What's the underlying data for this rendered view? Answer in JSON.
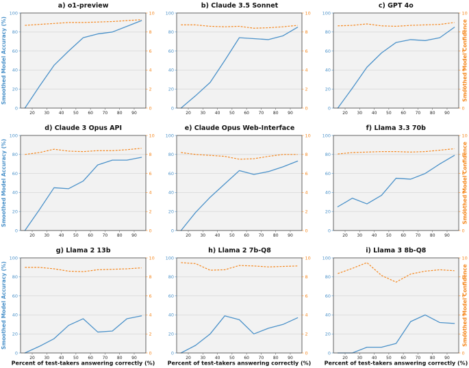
{
  "figure": {
    "description": "3x3 grid of line charts comparing smoothed model accuracy and confidence for nine language models"
  },
  "colors": {
    "accuracy": "#4a91c9",
    "confidence": "#f5861c",
    "plot_background": "#f2f2f2",
    "gridline": "#d8d8d8",
    "spine": "#3d3d3d",
    "tick_text": "#222222",
    "title_text": "#111111"
  },
  "chart_data": {
    "type": "line",
    "x": [
      15,
      25,
      35,
      45,
      55,
      65,
      75,
      85,
      95
    ],
    "xlabel": "Percent of test-takers answering correctly (%)",
    "ylabel_left": "Smoothed Model Accuracy (%)",
    "ylabel_right": "Smoothed Model Confidence",
    "xlim": [
      12,
      98
    ],
    "ylim_left": [
      0,
      100
    ],
    "ylim_right": [
      0,
      10
    ],
    "xticks": [
      20,
      30,
      40,
      50,
      60,
      70,
      80,
      90
    ],
    "yticks_left": [
      0,
      20,
      40,
      60,
      80,
      100
    ],
    "yticks_right": [
      0,
      2,
      4,
      6,
      8,
      10
    ],
    "grid": "horizontal",
    "legend": "none",
    "series_styles": {
      "accuracy": {
        "axis": "left",
        "style": "solid"
      },
      "confidence": {
        "axis": "right",
        "style": "dashed"
      }
    },
    "subplots": [
      {
        "id": "a",
        "title": "a) o1-preview",
        "row": 0,
        "col": 0,
        "accuracy": [
          0,
          23,
          45,
          60,
          74,
          78,
          80,
          86,
          92
        ],
        "confidence": [
          8.7,
          8.8,
          8.9,
          9.0,
          9.0,
          9.05,
          9.1,
          9.2,
          9.3
        ]
      },
      {
        "id": "b",
        "title": "b) Claude 3.5 Sonnet",
        "row": 0,
        "col": 1,
        "accuracy": [
          0,
          13,
          27,
          50,
          74,
          73,
          72,
          76,
          85
        ],
        "confidence": [
          8.75,
          8.75,
          8.6,
          8.55,
          8.6,
          8.4,
          8.45,
          8.55,
          8.7
        ]
      },
      {
        "id": "c",
        "title": "c) GPT 4o",
        "row": 0,
        "col": 2,
        "accuracy": [
          0,
          21,
          43,
          58,
          69,
          72,
          71,
          74,
          85
        ],
        "confidence": [
          8.65,
          8.7,
          8.85,
          8.65,
          8.6,
          8.7,
          8.75,
          8.8,
          9.0
        ]
      },
      {
        "id": "d",
        "title": "d) Claude 3 Opus API",
        "row": 1,
        "col": 0,
        "accuracy": [
          0,
          22,
          45,
          44,
          52,
          69,
          74,
          74,
          77
        ],
        "confidence": [
          8.0,
          8.2,
          8.55,
          8.35,
          8.3,
          8.4,
          8.4,
          8.5,
          8.65
        ]
      },
      {
        "id": "e",
        "title": "e) Claude Opus Web-Interface",
        "row": 1,
        "col": 1,
        "accuracy": [
          0,
          19,
          35,
          49,
          63,
          59,
          62,
          67,
          73
        ],
        "confidence": [
          8.2,
          8.0,
          7.9,
          7.8,
          7.5,
          7.55,
          7.8,
          8.0,
          8.0
        ]
      },
      {
        "id": "f",
        "title": "f) Llama 3.3 70b",
        "row": 1,
        "col": 2,
        "accuracy": [
          25,
          34,
          28,
          37,
          55,
          54,
          60,
          70,
          79
        ],
        "confidence": [
          8.05,
          8.2,
          8.25,
          8.3,
          8.3,
          8.25,
          8.3,
          8.45,
          8.6
        ]
      },
      {
        "id": "g",
        "title": "g) Llama 2 13b",
        "row": 2,
        "col": 0,
        "accuracy": [
          0,
          7,
          15,
          29,
          36,
          22,
          23,
          36,
          39
        ],
        "confidence": [
          9.0,
          9.0,
          8.85,
          8.6,
          8.55,
          8.75,
          8.8,
          8.85,
          8.95
        ]
      },
      {
        "id": "h",
        "title": "h) Llama 2 7b-Q8",
        "row": 2,
        "col": 1,
        "accuracy": [
          0,
          8,
          20,
          39,
          35,
          20,
          26,
          30,
          37
        ],
        "confidence": [
          9.5,
          9.4,
          8.7,
          8.75,
          9.2,
          9.15,
          9.05,
          9.1,
          9.15
        ]
      },
      {
        "id": "i",
        "title": "i) Llama 3 8b-Q8",
        "row": 2,
        "col": 2,
        "accuracy": [
          0,
          0,
          6,
          6,
          10,
          33,
          40,
          32,
          31
        ],
        "confidence": [
          8.35,
          8.9,
          9.5,
          8.15,
          7.45,
          8.3,
          8.6,
          8.75,
          8.65
        ]
      }
    ]
  }
}
